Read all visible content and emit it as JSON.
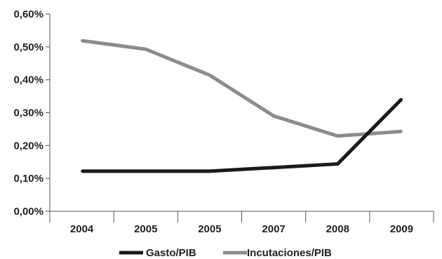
{
  "chart_data": {
    "type": "line",
    "categories": [
      "2004",
      "2005",
      "2005",
      "2007",
      "2008",
      "2009"
    ],
    "ylim": [
      0,
      0.6
    ],
    "yticks": [
      {
        "value": 0.0,
        "label": "0,00%"
      },
      {
        "value": 0.1,
        "label": "0,10%"
      },
      {
        "value": 0.2,
        "label": "0,20%"
      },
      {
        "value": 0.3,
        "label": "0,30%"
      },
      {
        "value": 0.4,
        "label": "0,40%"
      },
      {
        "value": 0.5,
        "label": "0,50%"
      },
      {
        "value": 0.6,
        "label": "0,60%"
      }
    ],
    "series": [
      {
        "name": "Gasto/PIB",
        "color": "#1a1a1a",
        "values": [
          0.122,
          0.122,
          0.122,
          0.133,
          0.144,
          0.341
        ]
      },
      {
        "name": "Incutaciones/PIB",
        "color": "#8c8c8c",
        "values": [
          0.519,
          0.493,
          0.414,
          0.29,
          0.229,
          0.243
        ]
      }
    ],
    "grid": false,
    "legend_position": "bottom"
  }
}
